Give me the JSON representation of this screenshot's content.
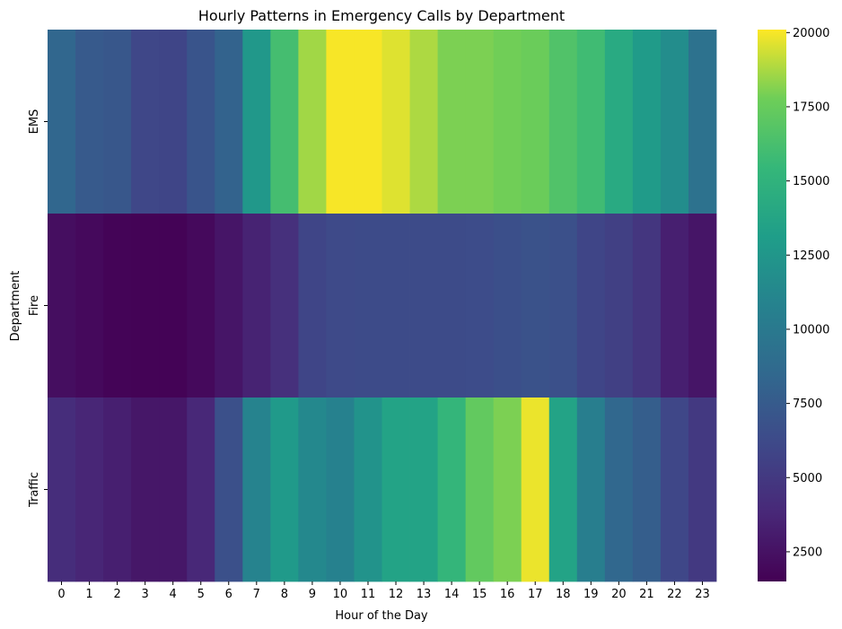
{
  "chart_data": {
    "type": "heatmap",
    "title": "Hourly Patterns in Emergency Calls by Department",
    "xlabel": "Hour of the Day",
    "ylabel": "Department",
    "x": [
      "0",
      "1",
      "2",
      "3",
      "4",
      "5",
      "6",
      "7",
      "8",
      "9",
      "10",
      "11",
      "12",
      "13",
      "14",
      "15",
      "16",
      "17",
      "18",
      "19",
      "20",
      "21",
      "22",
      "23"
    ],
    "y": [
      "EMS",
      "Fire",
      "Traffic"
    ],
    "values": [
      [
        8400,
        7400,
        7200,
        6000,
        5900,
        7000,
        8100,
        12600,
        16100,
        18600,
        20000,
        20000,
        19600,
        18800,
        18000,
        18000,
        17800,
        17600,
        16600,
        15900,
        14200,
        12900,
        11700,
        9400
      ],
      [
        2300,
        2000,
        1700,
        1600,
        1600,
        2000,
        2700,
        3500,
        4400,
        5900,
        6200,
        6300,
        6300,
        6300,
        6300,
        6400,
        6600,
        6800,
        6700,
        5900,
        5500,
        4800,
        3300,
        2700
      ],
      [
        4200,
        3700,
        3300,
        2800,
        2800,
        3800,
        6700,
        10900,
        12800,
        11300,
        10700,
        12200,
        13600,
        13600,
        15300,
        17300,
        18000,
        19800,
        13600,
        10400,
        8500,
        7700,
        6000,
        5000
      ]
    ],
    "colorbar": {
      "vmin": 1500,
      "vmax": 20100,
      "ticks": [
        "2500",
        "5000",
        "7500",
        "10000",
        "12500",
        "15000",
        "17500",
        "20000"
      ],
      "colormap": "viridis"
    },
    "grid": false
  }
}
